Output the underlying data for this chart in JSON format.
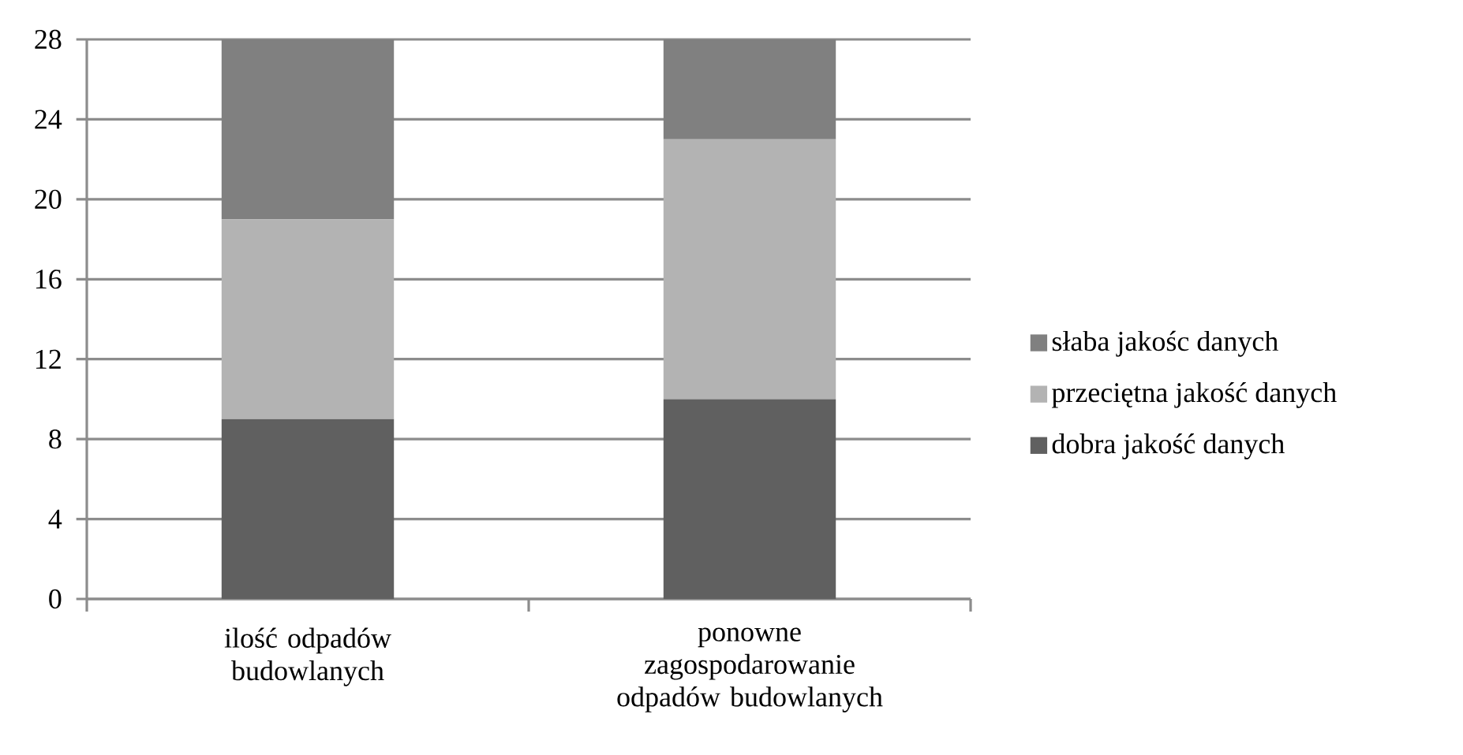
{
  "chart_data": {
    "type": "bar",
    "stacked": true,
    "categories": [
      "ilość odpadów budowlanych",
      "ponowne zagospodarowanie odpadów budowlanych"
    ],
    "series": [
      {
        "name": "dobra jakość danych",
        "color": "#606060",
        "values": [
          9,
          10
        ]
      },
      {
        "name": "przeciętna jakość danych",
        "color": "#b3b3b3",
        "values": [
          10,
          13
        ]
      },
      {
        "name": "słaba jakośc danych",
        "color": "#808080",
        "values": [
          9,
          5
        ]
      }
    ],
    "ylim": [
      0,
      28
    ],
    "yticks": [
      0,
      4,
      8,
      12,
      16,
      20,
      24,
      28
    ],
    "grid": "y",
    "legend": "right"
  }
}
